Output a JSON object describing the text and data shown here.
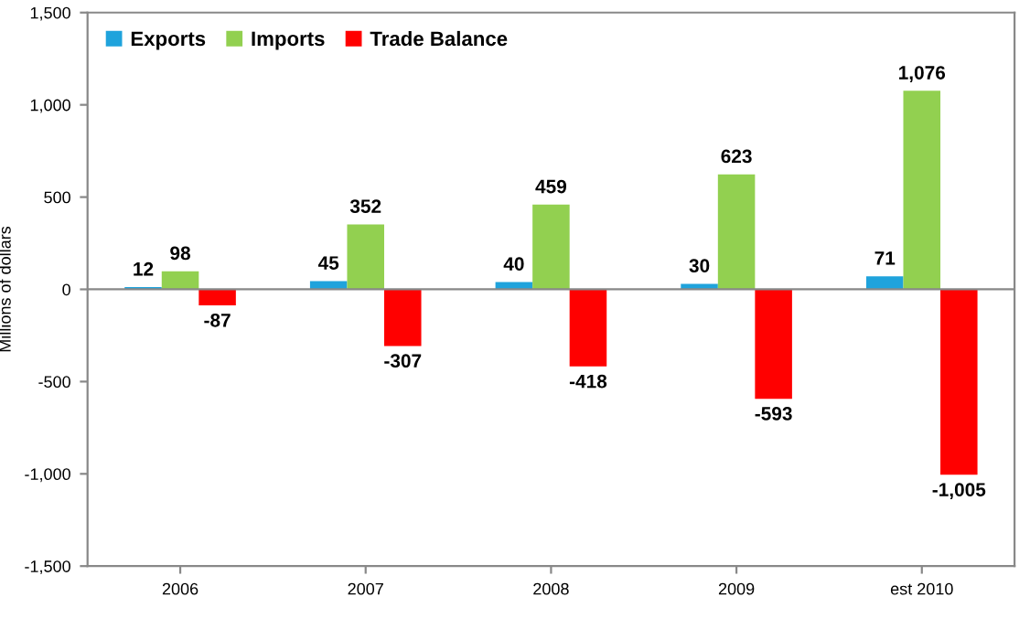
{
  "chart_data": {
    "type": "bar",
    "ylabel": "Millions of dollars",
    "categories": [
      "2006",
      "2007",
      "2008",
      "2009",
      "est 2010"
    ],
    "series": [
      {
        "name": "Exports",
        "color": "#1fa3dc",
        "values": [
          12,
          45,
          40,
          30,
          71
        ],
        "value_labels": [
          "12",
          "45",
          "40",
          "30",
          "71"
        ]
      },
      {
        "name": "Imports",
        "color": "#92d050",
        "values": [
          98,
          352,
          459,
          623,
          1076
        ],
        "value_labels": [
          "98",
          "352",
          "459",
          "623",
          "1,076"
        ]
      },
      {
        "name": "Trade Balance",
        "color": "#ff0000",
        "values": [
          -87,
          -307,
          -418,
          -593,
          -1005
        ],
        "value_labels": [
          "-87",
          "-307",
          "-418",
          "-593",
          "-1,005"
        ]
      }
    ],
    "ylim": [
      -1500,
      1500
    ],
    "yticks": [
      {
        "value": -1500,
        "label": "-1,500"
      },
      {
        "value": -1000,
        "label": "-1,000"
      },
      -500,
      0,
      500,
      {
        "value": 1000,
        "label": "1,000"
      },
      {
        "value": 1500,
        "label": "1,500"
      }
    ],
    "ref_lines": [
      {
        "axis": "y",
        "value": 0,
        "color": "#888888"
      }
    ],
    "grid": false,
    "legend": "top left"
  }
}
